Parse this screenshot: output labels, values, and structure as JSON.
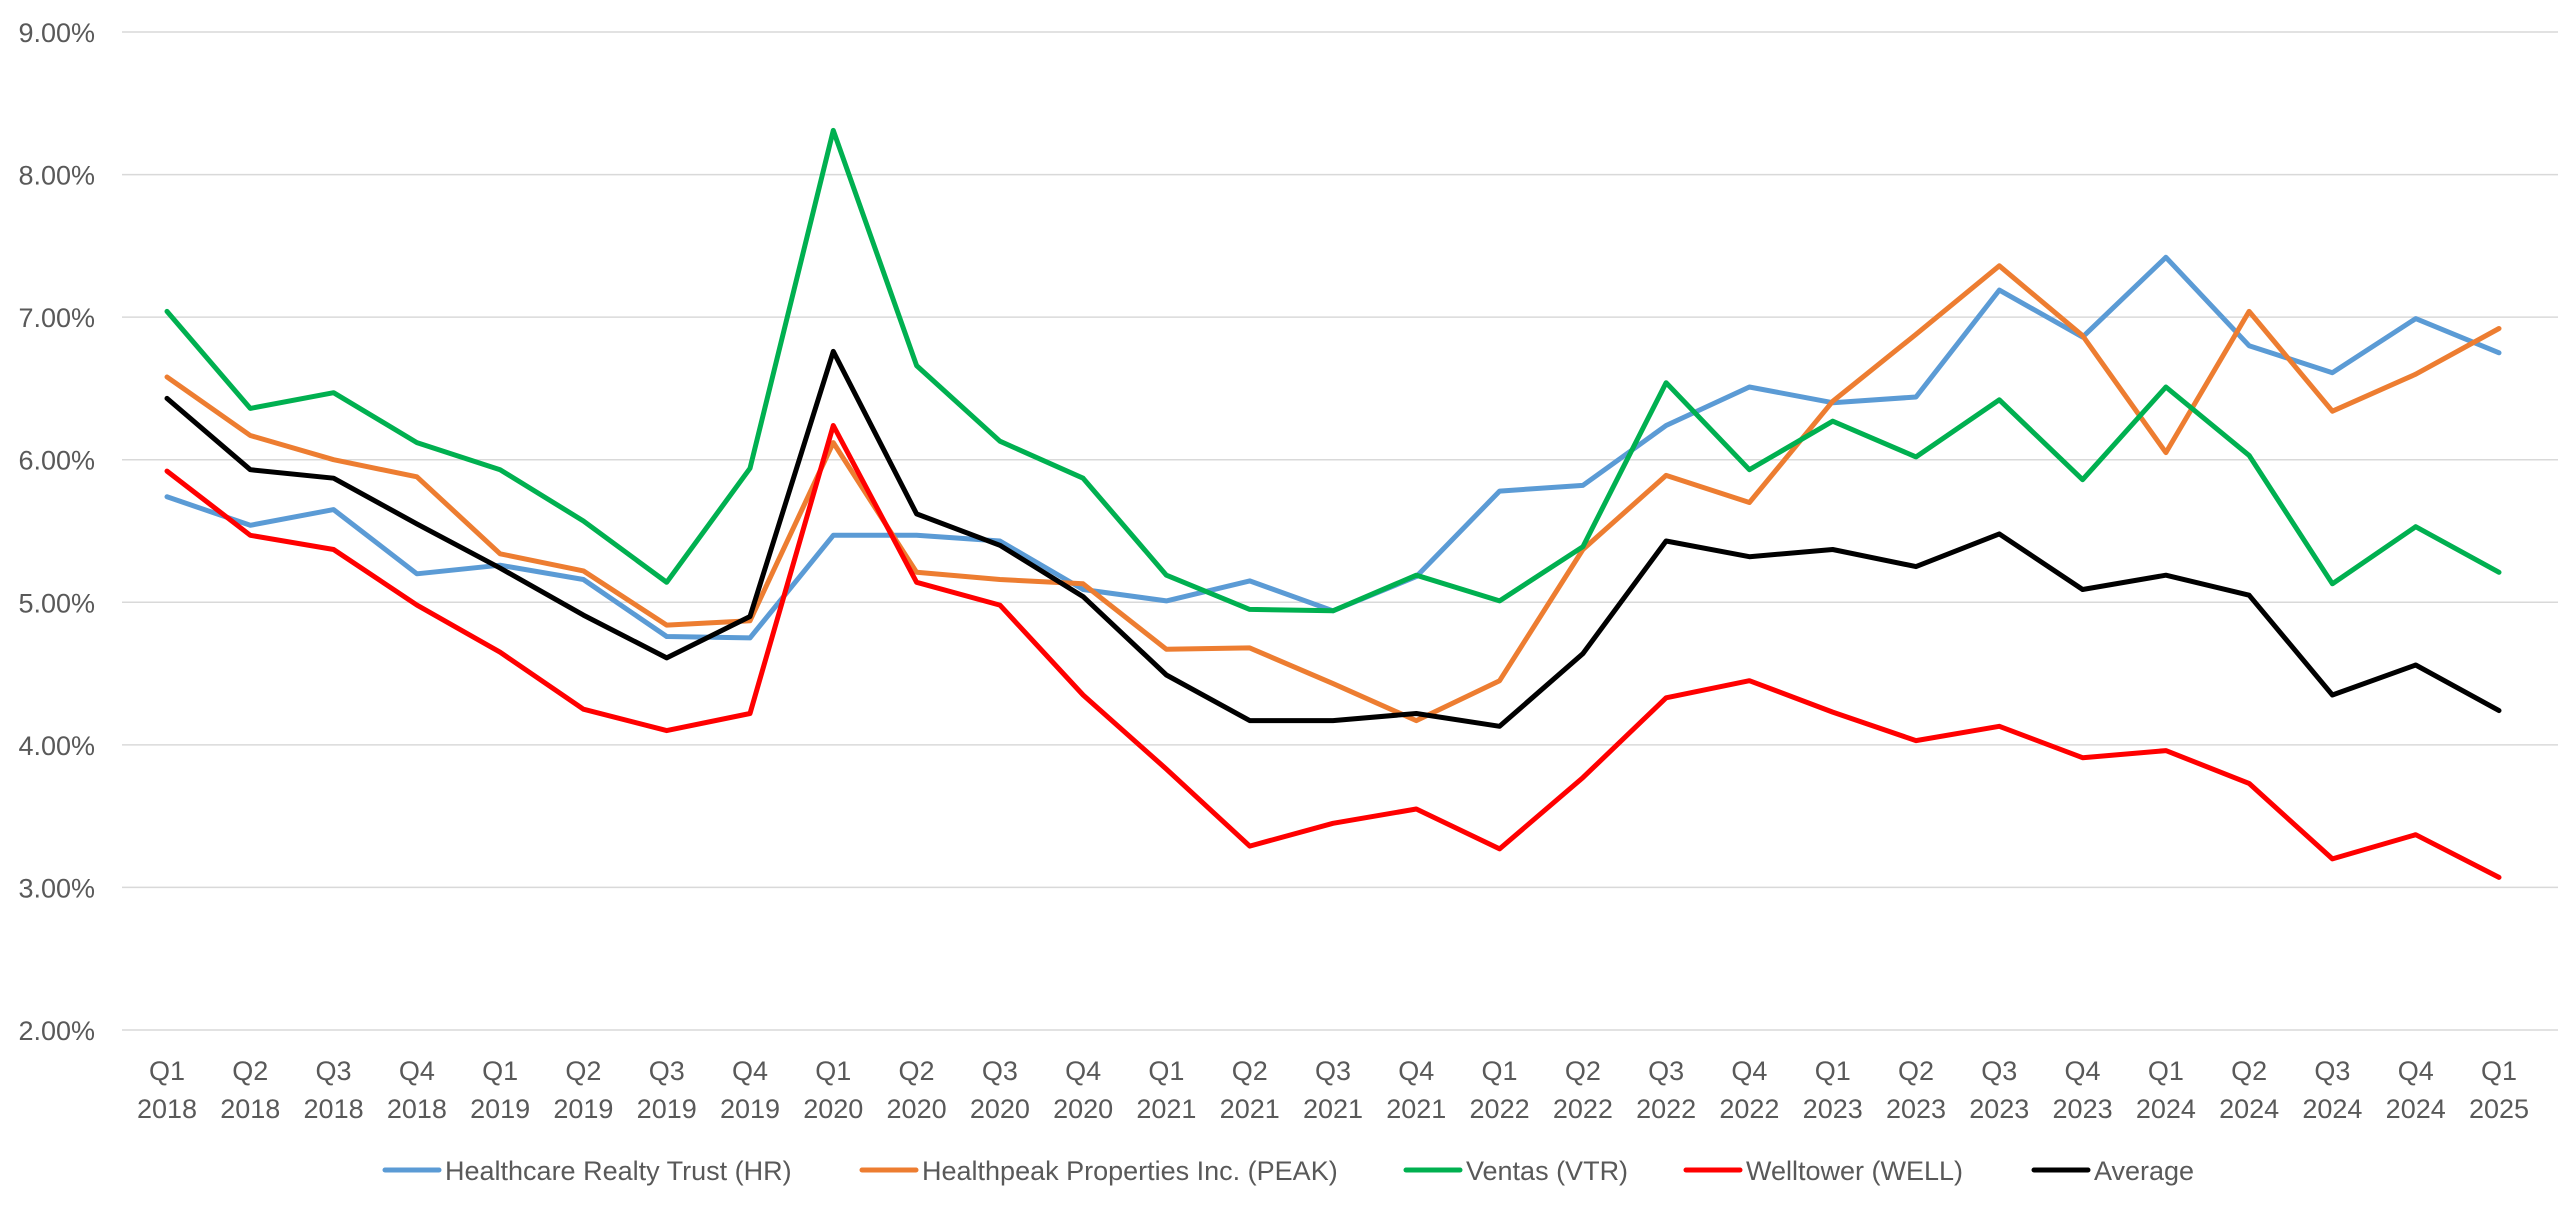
{
  "chart_data": {
    "type": "line",
    "title": "",
    "xlabel": "",
    "ylabel": "",
    "ylim": [
      2.0,
      9.0
    ],
    "yticks": [
      "2.00%",
      "3.00%",
      "4.00%",
      "5.00%",
      "6.00%",
      "7.00%",
      "8.00%",
      "9.00%"
    ],
    "ytick_values": [
      2,
      3,
      4,
      5,
      6,
      7,
      8,
      9
    ],
    "grid": true,
    "legend_position": "bottom",
    "categories": [
      [
        "Q1",
        "2018"
      ],
      [
        "Q2",
        "2018"
      ],
      [
        "Q3",
        "2018"
      ],
      [
        "Q4",
        "2018"
      ],
      [
        "Q1",
        "2019"
      ],
      [
        "Q2",
        "2019"
      ],
      [
        "Q3",
        "2019"
      ],
      [
        "Q4",
        "2019"
      ],
      [
        "Q1",
        "2020"
      ],
      [
        "Q2",
        "2020"
      ],
      [
        "Q3",
        "2020"
      ],
      [
        "Q4",
        "2020"
      ],
      [
        "Q1",
        "2021"
      ],
      [
        "Q2",
        "2021"
      ],
      [
        "Q3",
        "2021"
      ],
      [
        "Q4",
        "2021"
      ],
      [
        "Q1",
        "2022"
      ],
      [
        "Q2",
        "2022"
      ],
      [
        "Q3",
        "2022"
      ],
      [
        "Q4",
        "2022"
      ],
      [
        "Q1",
        "2023"
      ],
      [
        "Q2",
        "2023"
      ],
      [
        "Q3",
        "2023"
      ],
      [
        "Q4",
        "2023"
      ],
      [
        "Q1",
        "2024"
      ],
      [
        "Q2",
        "2024"
      ],
      [
        "Q3",
        "2024"
      ],
      [
        "Q4",
        "2024"
      ],
      [
        "Q1",
        "2025"
      ]
    ],
    "series": [
      {
        "name": "Healthcare Realty Trust (HR)",
        "color": "#5b9bd5",
        "values": [
          5.74,
          5.54,
          5.65,
          5.2,
          5.26,
          5.16,
          4.76,
          4.75,
          5.47,
          5.47,
          5.43,
          5.09,
          5.01,
          5.15,
          4.94,
          5.18,
          5.78,
          5.82,
          6.24,
          6.51,
          6.4,
          6.44,
          7.19,
          6.86,
          7.42,
          6.8,
          6.61,
          6.99,
          6.75
        ]
      },
      {
        "name": "Healthpeak Properties Inc. (PEAK)",
        "color": "#ed7d31",
        "values": [
          6.58,
          6.17,
          6.0,
          5.88,
          5.34,
          5.22,
          4.84,
          4.87,
          6.12,
          5.21,
          5.16,
          5.13,
          4.67,
          4.68,
          4.43,
          4.17,
          4.45,
          5.37,
          5.89,
          5.7,
          6.41,
          6.88,
          7.36,
          6.87,
          6.05,
          7.04,
          6.34,
          6.6,
          6.92
        ]
      },
      {
        "name": "Ventas (VTR)",
        "color": "#00b050",
        "values": [
          7.04,
          6.36,
          6.47,
          6.12,
          5.93,
          5.57,
          5.14,
          5.94,
          8.31,
          6.66,
          6.13,
          5.87,
          5.19,
          4.95,
          4.94,
          5.19,
          5.01,
          5.39,
          6.54,
          5.93,
          6.27,
          6.02,
          6.42,
          5.86,
          6.51,
          6.03,
          5.13,
          5.53,
          5.21
        ]
      },
      {
        "name": "Welltower (WELL)",
        "color": "#ff0000",
        "values": [
          5.92,
          5.47,
          5.37,
          4.98,
          4.65,
          4.25,
          4.1,
          4.22,
          6.24,
          5.14,
          4.98,
          4.35,
          3.83,
          3.29,
          3.45,
          3.55,
          3.27,
          3.77,
          4.33,
          4.45,
          4.23,
          4.03,
          4.13,
          3.91,
          3.96,
          3.73,
          3.2,
          3.37,
          3.07
        ]
      },
      {
        "name": "Average",
        "color": "#000000",
        "values": [
          6.43,
          5.93,
          5.87,
          5.55,
          5.24,
          4.91,
          4.61,
          4.9,
          6.76,
          5.62,
          5.4,
          5.04,
          4.49,
          4.17,
          4.17,
          4.22,
          4.13,
          4.64,
          5.43,
          5.32,
          5.37,
          5.25,
          5.48,
          5.09,
          5.19,
          5.05,
          4.35,
          4.56,
          4.24
        ]
      }
    ]
  }
}
